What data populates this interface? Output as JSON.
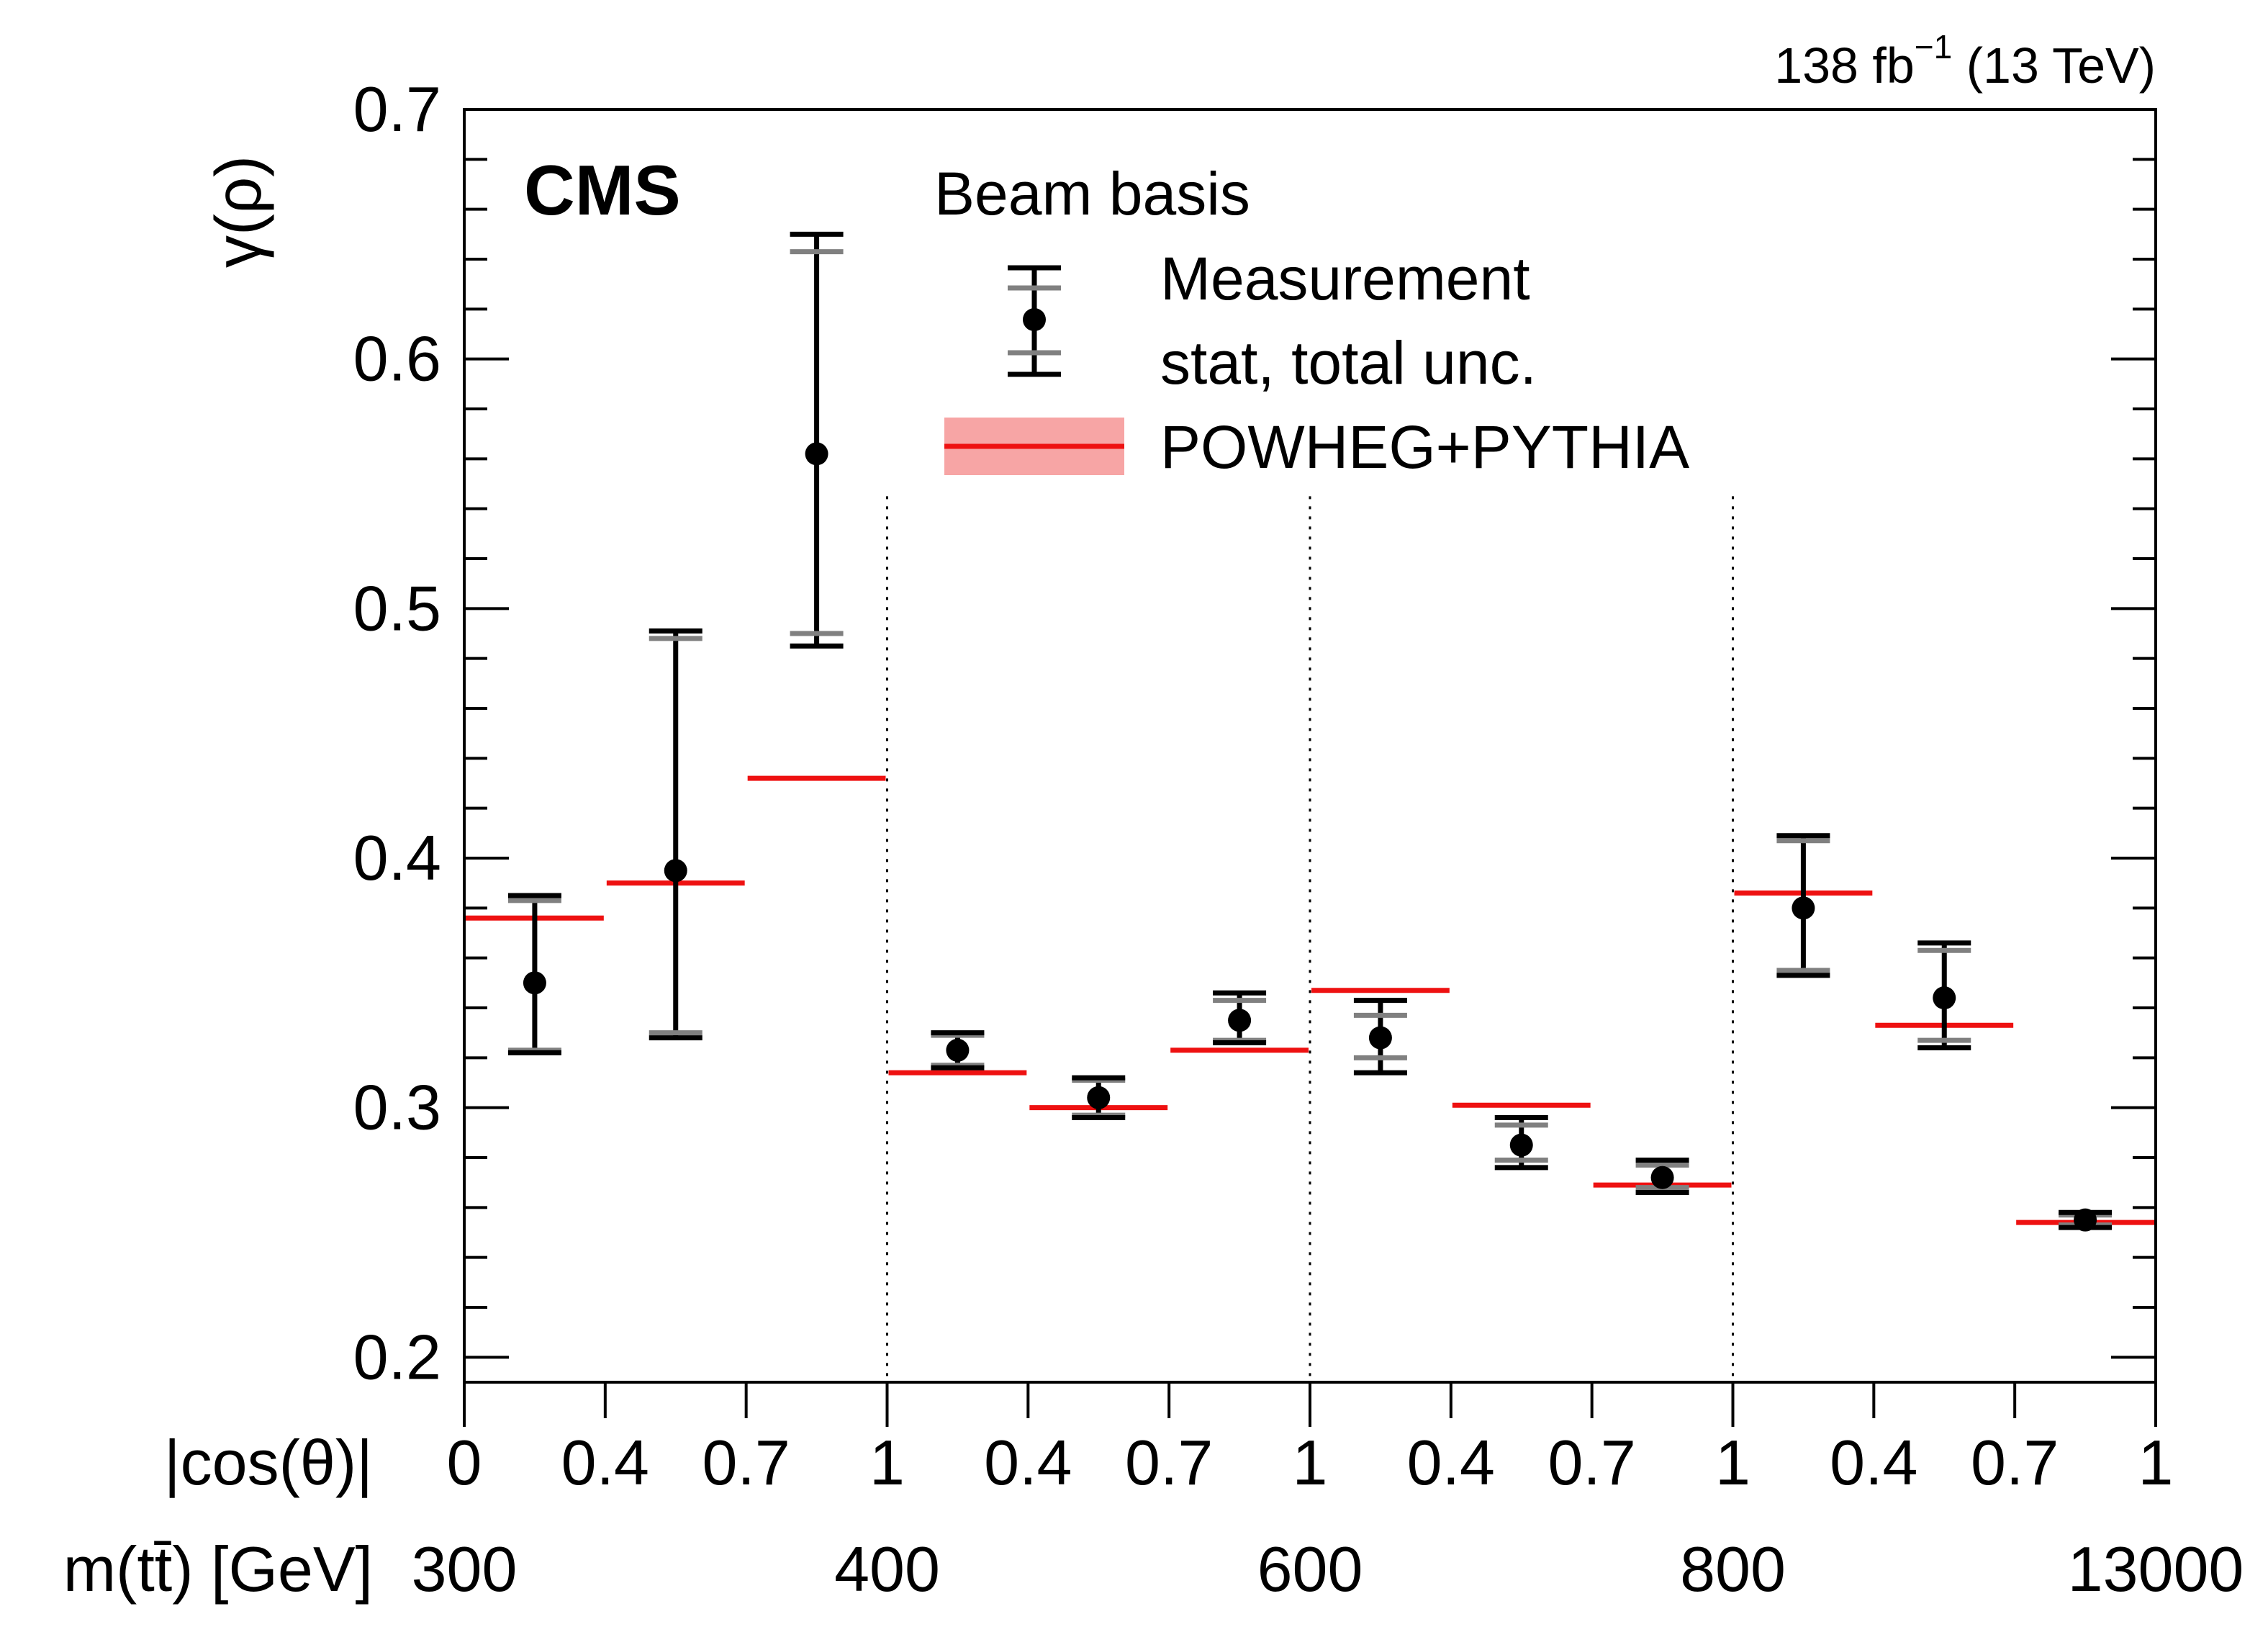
{
  "chart_data": {
    "type": "scatter",
    "title": "",
    "lumi_label": "138 fb",
    "lumi_superscript": "−1",
    "lumi_suffix": " (13 TeV)",
    "experiment_label": "CMS",
    "ylabel": "γ(ρ)",
    "ylim": [
      0.19,
      0.7
    ],
    "yticks": [
      "0.2",
      "0.3",
      "0.4",
      "0.5",
      "0.6",
      "0.7"
    ],
    "xlabel_row1": "|cos(θ)|",
    "xlabel_row2": "m(tt̄) [GeV]",
    "xticks_row1": [
      "0",
      "0.4",
      "0.7",
      "1",
      "0.4",
      "0.7",
      "1",
      "0.4",
      "0.7",
      "1",
      "0.4",
      "0.7",
      "1"
    ],
    "xticks_row2": [
      "300",
      "400",
      "600",
      "800",
      "13000"
    ],
    "legend": {
      "title": "Beam basis",
      "measurement": "Measurement",
      "measurement_sub": "stat, total unc.",
      "prediction": "POWHEG+PYTHIA"
    },
    "colors": {
      "measurement": "#000000",
      "stat": "#808080",
      "prediction": "#ee1111",
      "prediction_band": "#f7a5a5"
    },
    "series": [
      {
        "name": "Measurement",
        "bins": [
          1,
          2,
          3,
          4,
          5,
          6,
          7,
          8,
          9,
          10,
          11,
          12
        ],
        "values": [
          0.35,
          0.395,
          0.562,
          0.323,
          0.304,
          0.335,
          0.328,
          0.285,
          0.272,
          0.38,
          0.344,
          0.255
        ],
        "stat_low": [
          0.323,
          0.33,
          0.49,
          0.317,
          0.297,
          0.327,
          0.32,
          0.279,
          0.268,
          0.355,
          0.327,
          0.253
        ],
        "stat_high": [
          0.383,
          0.488,
          0.643,
          0.329,
          0.311,
          0.343,
          0.337,
          0.293,
          0.277,
          0.407,
          0.363,
          0.257
        ],
        "total_low": [
          0.322,
          0.328,
          0.485,
          0.316,
          0.296,
          0.326,
          0.314,
          0.276,
          0.266,
          0.353,
          0.324,
          0.252
        ],
        "total_high": [
          0.385,
          0.491,
          0.65,
          0.33,
          0.312,
          0.346,
          0.343,
          0.296,
          0.279,
          0.409,
          0.366,
          0.258
        ]
      },
      {
        "name": "POWHEG+PYTHIA",
        "bins": [
          1,
          2,
          3,
          4,
          5,
          6,
          7,
          8,
          9,
          10,
          11,
          12
        ],
        "values": [
          0.376,
          0.39,
          0.432,
          0.314,
          0.3,
          0.323,
          0.347,
          0.301,
          0.269,
          0.386,
          0.333,
          0.254
        ]
      }
    ]
  }
}
